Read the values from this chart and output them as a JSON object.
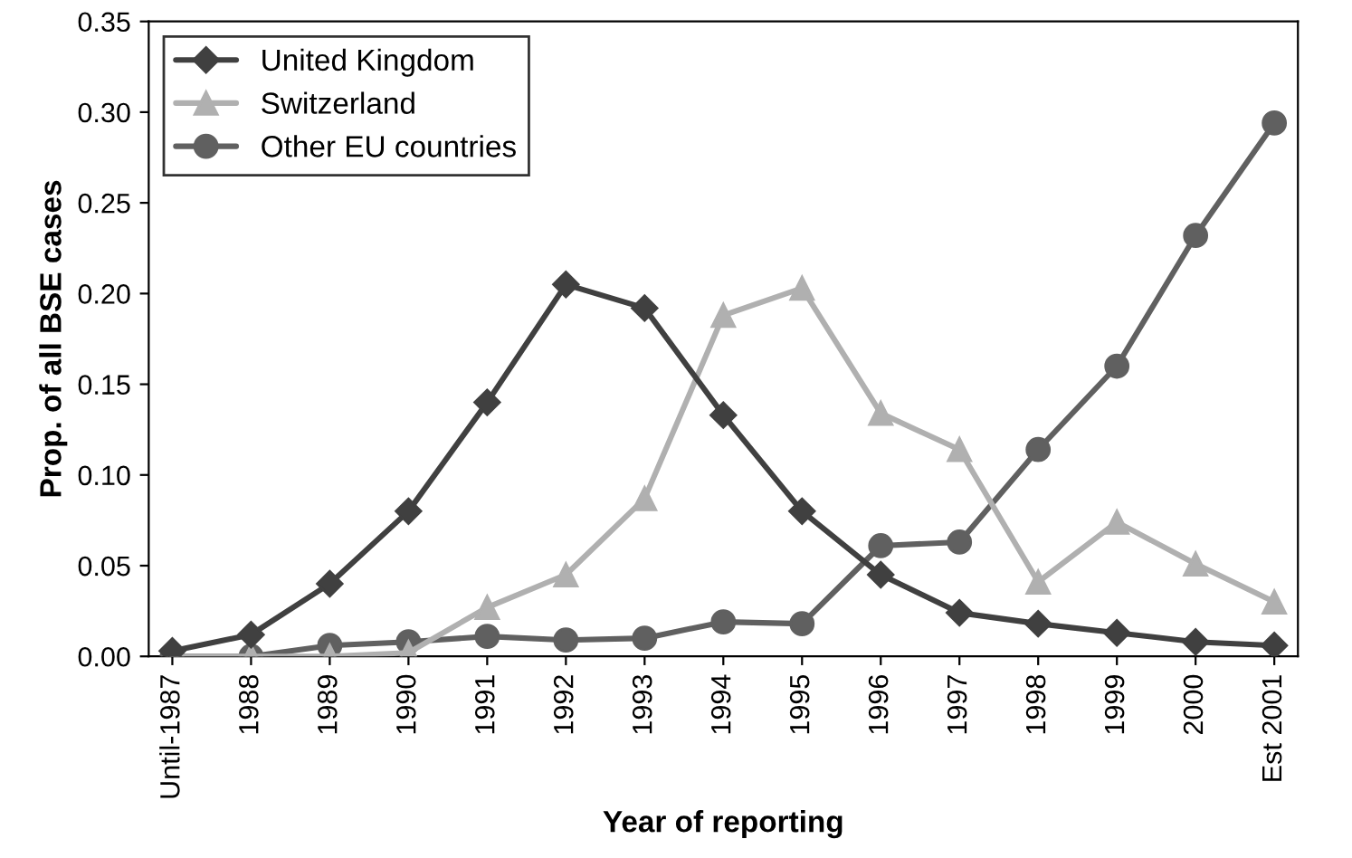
{
  "chart_data": {
    "type": "line",
    "xlabel": "Year of reporting",
    "ylabel": "Prop. of all BSE cases",
    "categories": [
      "Until-1987",
      "1988",
      "1989",
      "1990",
      "1991",
      "1992",
      "1993",
      "1994",
      "1995",
      "1996",
      "1997",
      "1998",
      "1999",
      "2000",
      "Est 2001"
    ],
    "series": [
      {
        "name": "United Kingdom",
        "color": "#404040",
        "marker": "diamond",
        "values": [
          0.003,
          0.012,
          0.04,
          0.08,
          0.14,
          0.205,
          0.192,
          0.133,
          0.08,
          0.045,
          0.024,
          0.018,
          0.013,
          0.008,
          0.006
        ]
      },
      {
        "name": "Switzerland",
        "color": "#b0b0b0",
        "marker": "triangle",
        "values": [
          0.0,
          0.0,
          0.0,
          0.002,
          0.027,
          0.045,
          0.087,
          0.188,
          0.203,
          0.134,
          0.114,
          0.041,
          0.074,
          0.051,
          0.03
        ]
      },
      {
        "name": "Other EU countries",
        "color": "#606060",
        "marker": "circle",
        "values": [
          0.0,
          0.0,
          0.006,
          0.008,
          0.011,
          0.009,
          0.01,
          0.019,
          0.018,
          0.061,
          0.063,
          0.114,
          0.16,
          0.232,
          0.294
        ]
      }
    ],
    "ylim": [
      0,
      0.35
    ],
    "yticks": [
      {
        "value": 0,
        "label": "0.00"
      },
      {
        "value": 0.05,
        "label": "0.05"
      },
      {
        "value": 0.1,
        "label": "0.10"
      },
      {
        "value": 0.15,
        "label": "0.15"
      },
      {
        "value": 0.2,
        "label": "0.20"
      },
      {
        "value": 0.25,
        "label": "0.25"
      },
      {
        "value": 0.3,
        "label": "0.30"
      },
      {
        "value": 0.35,
        "label": "0.35"
      }
    ],
    "grid": false,
    "legend": "top left",
    "line_style": "solid"
  }
}
